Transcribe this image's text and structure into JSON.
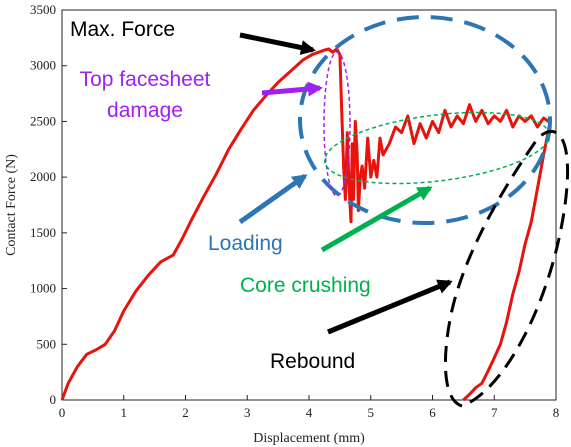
{
  "chart_data": {
    "type": "line",
    "title": "",
    "xlabel": "Displacement (mm)",
    "ylabel": "Contact Force (N)",
    "xlim": [
      0,
      8
    ],
    "ylim": [
      0,
      3500
    ],
    "xticks": [
      0,
      1,
      2,
      3,
      4,
      5,
      6,
      7,
      8
    ],
    "yticks": [
      0,
      500,
      1000,
      1500,
      2000,
      2500,
      3000,
      3500
    ],
    "grid": false,
    "series": [
      {
        "color": "#e8130c",
        "x": [
          0,
          0.1,
          0.25,
          0.4,
          0.55,
          0.7,
          0.85,
          1.0,
          1.2,
          1.4,
          1.6,
          1.8,
          1.95,
          2.1,
          2.3,
          2.5,
          2.7,
          2.9,
          3.1,
          3.3,
          3.5,
          3.7,
          3.9,
          4.05,
          4.15,
          4.25,
          4.32,
          4.38,
          4.45,
          4.5,
          4.53,
          4.56,
          4.59,
          4.62,
          4.65,
          4.68,
          4.7,
          4.72,
          4.75,
          4.78,
          4.8,
          4.83,
          4.86,
          4.9,
          4.95,
          5.0,
          5.05,
          5.1,
          5.15,
          5.2,
          5.3,
          5.4,
          5.5,
          5.6,
          5.7,
          5.8,
          5.9,
          6.0,
          6.1,
          6.2,
          6.3,
          6.4,
          6.5,
          6.6,
          6.7,
          6.8,
          6.9,
          7.0,
          7.1,
          7.2,
          7.3,
          7.4,
          7.5,
          7.6,
          7.7,
          7.8,
          7.88,
          7.9,
          7.8,
          7.7,
          7.6,
          7.5,
          7.4,
          7.3,
          7.2,
          7.1,
          7.0,
          6.9,
          6.8,
          6.7,
          6.6,
          6.5
        ],
        "y": [
          0,
          150,
          300,
          410,
          450,
          500,
          620,
          800,
          980,
          1120,
          1240,
          1300,
          1450,
          1620,
          1830,
          2030,
          2250,
          2430,
          2600,
          2730,
          2850,
          2950,
          3050,
          3100,
          3120,
          3140,
          3150,
          3120,
          3150,
          3100,
          2600,
          2100,
          1800,
          2400,
          1900,
          1600,
          2300,
          1800,
          2500,
          2200,
          1700,
          2000,
          2100,
          1900,
          2350,
          2000,
          2150,
          2000,
          2350,
          2200,
          2300,
          2450,
          2400,
          2550,
          2300,
          2480,
          2350,
          2500,
          2400,
          2600,
          2450,
          2550,
          2480,
          2650,
          2500,
          2600,
          2480,
          2550,
          2500,
          2600,
          2450,
          2550,
          2500,
          2550,
          2450,
          2530,
          2500,
          2480,
          2200,
          1900,
          1600,
          1400,
          1150,
          950,
          700,
          500,
          380,
          260,
          150,
          110,
          50,
          0
        ]
      }
    ],
    "annotations": [
      {
        "text": "Max. Force",
        "color": "#000000"
      },
      {
        "text_lines": [
          "Top facesheet",
          "damage"
        ],
        "color": "#a020f0"
      },
      {
        "text": "Loading",
        "color": "#2e75b6"
      },
      {
        "text": "Core crushing",
        "color": "#00b050"
      },
      {
        "text": "Rebound",
        "color": "#000000"
      }
    ]
  }
}
